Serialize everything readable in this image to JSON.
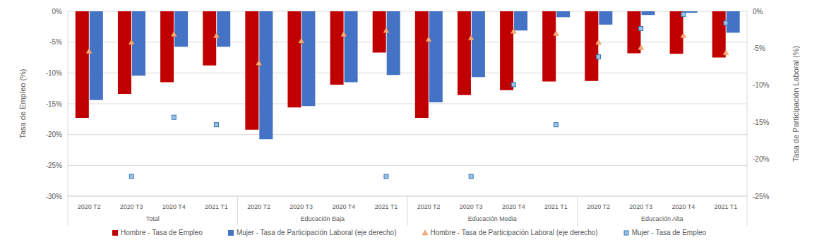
{
  "chart_data": {
    "type": "bar",
    "y_label": "Tasa de Empleo (%)",
    "y2_label": "Tasa de Participación Laboral (%)",
    "categories": [
      "2020 T2",
      "2020 T3",
      "2020 T4",
      "2021 T1",
      "2020 T2",
      "2020 T3",
      "2020 T4",
      "2021 T1",
      "2020 T2",
      "2020 T3",
      "2020 T4",
      "2021 T1",
      "2020 T2",
      "2020 T3",
      "2020 T4",
      "2021 T1"
    ],
    "groups": [
      "Total",
      "Educación Baja",
      "Educación Media",
      "Educación Alta"
    ],
    "ylim": [
      -30,
      0
    ],
    "yticks": [
      {
        "value": -30,
        "label": "-30%"
      },
      {
        "value": -25,
        "label": "-25%"
      },
      {
        "value": -20,
        "label": "-20%"
      },
      {
        "value": -15,
        "label": "-15%"
      },
      {
        "value": -10,
        "label": "-10%"
      },
      {
        "value": -5,
        "label": "-5%"
      },
      {
        "value": 0,
        "label": "0%"
      }
    ],
    "y2lim": [
      -25,
      0
    ],
    "y2ticks": [
      {
        "value": -25,
        "label": "-25%"
      },
      {
        "value": -20,
        "label": "-20%"
      },
      {
        "value": -15,
        "label": "-15%"
      },
      {
        "value": -10,
        "label": "-10%"
      },
      {
        "value": -5,
        "label": "-5%"
      },
      {
        "value": 0,
        "label": "0%"
      }
    ],
    "grid": true,
    "legend": "bottom",
    "series": [
      {
        "name": "Hombre - Tasa de Empleo",
        "type": "bar",
        "color": "#c00000",
        "values": [
          -17.3,
          -13.4,
          -11.5,
          -8.8,
          -19.2,
          -15.6,
          -11.9,
          -6.7,
          -17.3,
          -13.6,
          -12.8,
          -11.4,
          -11.3,
          -6.8,
          -6.9,
          -7.5
        ]
      },
      {
        "name": "Mujer - Tasa de Participación Laboral (eje derecho)",
        "type": "bar",
        "axis": "y2",
        "color": "#4472c4",
        "values": [
          -12.0,
          -8.7,
          -4.8,
          -4.8,
          -17.3,
          -12.8,
          -9.6,
          -8.6,
          -12.3,
          -8.9,
          -2.6,
          -0.8,
          -1.8,
          -0.5,
          -0.2,
          -2.9
        ]
      },
      {
        "name": "Hombre - Tasa de Participación Laboral (eje derecho)",
        "type": "scatter",
        "axis": "y2",
        "marker": "triangle",
        "color": "#f4b183",
        "values": [
          -5.4,
          -4.2,
          -3.1,
          -3.3,
          -7.0,
          -4.0,
          -3.1,
          -2.6,
          -3.8,
          -3.6,
          -2.7,
          -3.0,
          -4.2,
          -4.9,
          -3.3,
          -5.6
        ]
      },
      {
        "name": "Mujer - Tasa de Empleo",
        "type": "scatter",
        "marker": "square",
        "color": "#5b9bd5",
        "values": [
          null,
          -26.8,
          -17.2,
          -18.4,
          null,
          null,
          null,
          -26.8,
          null,
          -26.8,
          -11.9,
          -18.4,
          -7.4,
          -2.8,
          -0.5,
          -1.9
        ]
      }
    ]
  }
}
